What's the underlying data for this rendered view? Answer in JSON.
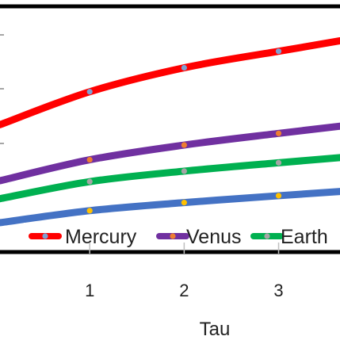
{
  "chart_data": {
    "type": "line",
    "title": "",
    "xlabel": "Tau",
    "ylabel": "",
    "x_ticks": [
      1,
      2,
      3
    ],
    "xlim": [
      0.05,
      3.65
    ],
    "ylim": [
      0,
      8.2
    ],
    "grid": false,
    "legend_position": "bottom, inside plot",
    "series": [
      {
        "name": "Mercury",
        "color": "#ff0000",
        "marker_color": "#7f9fd0",
        "x": [
          1,
          2,
          3
        ],
        "y": [
          5.35,
          6.15,
          6.7
        ],
        "curve": {
          "x": [
            0.05,
            1,
            2,
            3,
            3.65
          ],
          "y": [
            4.25,
            5.35,
            6.15,
            6.7,
            7.05
          ]
        }
      },
      {
        "name": "Venus",
        "color": "#7030a0",
        "marker_color": "#ed7d31",
        "x": [
          1,
          2,
          3
        ],
        "y": [
          3.08,
          3.57,
          3.96
        ],
        "curve": {
          "x": [
            0.05,
            1,
            2,
            3,
            3.65
          ],
          "y": [
            2.38,
            3.08,
            3.57,
            3.96,
            4.2
          ]
        }
      },
      {
        "name": "Earth",
        "color": "#00b050",
        "marker_color": "#a5a5a5",
        "x": [
          1,
          2,
          3
        ],
        "y": [
          2.35,
          2.7,
          2.98
        ],
        "curve": {
          "x": [
            0.05,
            1,
            2,
            3,
            3.65
          ],
          "y": [
            1.78,
            2.35,
            2.7,
            2.98,
            3.15
          ]
        }
      },
      {
        "name": "",
        "color": "#4472c4",
        "marker_color": "#ffc000",
        "x": [
          1,
          2,
          3
        ],
        "y": [
          1.38,
          1.65,
          1.88
        ],
        "curve": {
          "x": [
            0.05,
            1,
            2,
            3,
            3.65
          ],
          "y": [
            0.98,
            1.38,
            1.65,
            1.88,
            2.02
          ]
        }
      }
    ]
  }
}
